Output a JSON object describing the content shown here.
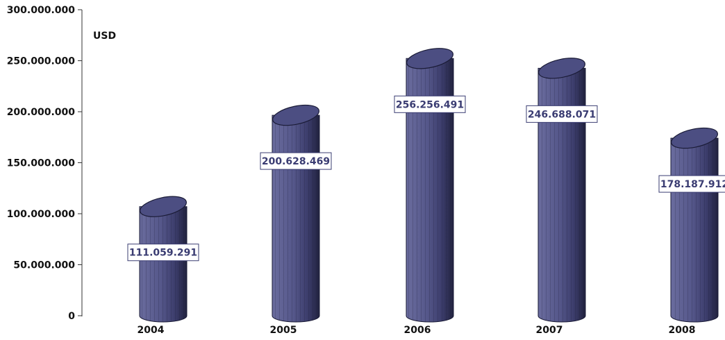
{
  "chart_data": {
    "type": "bar",
    "unit_label": "USD",
    "categories": [
      "2004",
      "2005",
      "2006",
      "2007",
      "2008"
    ],
    "values": [
      111059291,
      200628469,
      256256491,
      246688071,
      178187912
    ],
    "value_labels": [
      "111.059.291",
      "200.628.469",
      "256.256.491",
      "246.688.071",
      "178.187.912"
    ],
    "ylim": [
      0,
      300000000
    ],
    "yticks": [
      {
        "value": 0,
        "label": "0"
      },
      {
        "value": 50000000,
        "label": "50.000.000"
      },
      {
        "value": 100000000,
        "label": "100.000.000"
      },
      {
        "value": 150000000,
        "label": "150.000.000"
      },
      {
        "value": 200000000,
        "label": "200.000.000"
      },
      {
        "value": 250000000,
        "label": "250.000.000"
      },
      {
        "value": 300000000,
        "label": "300.000.000"
      }
    ],
    "grid": false,
    "legend": "none",
    "bar_style": "3d-cylinder",
    "colors": {
      "bar_face": "#5a5c8e",
      "bar_side": "#2a2b52",
      "bar_top": "#4c4e82",
      "bar_outline": "#1a1b36",
      "label_text": "#3a3c72",
      "label_border": "#3a3c72",
      "axis": "#333333"
    }
  }
}
